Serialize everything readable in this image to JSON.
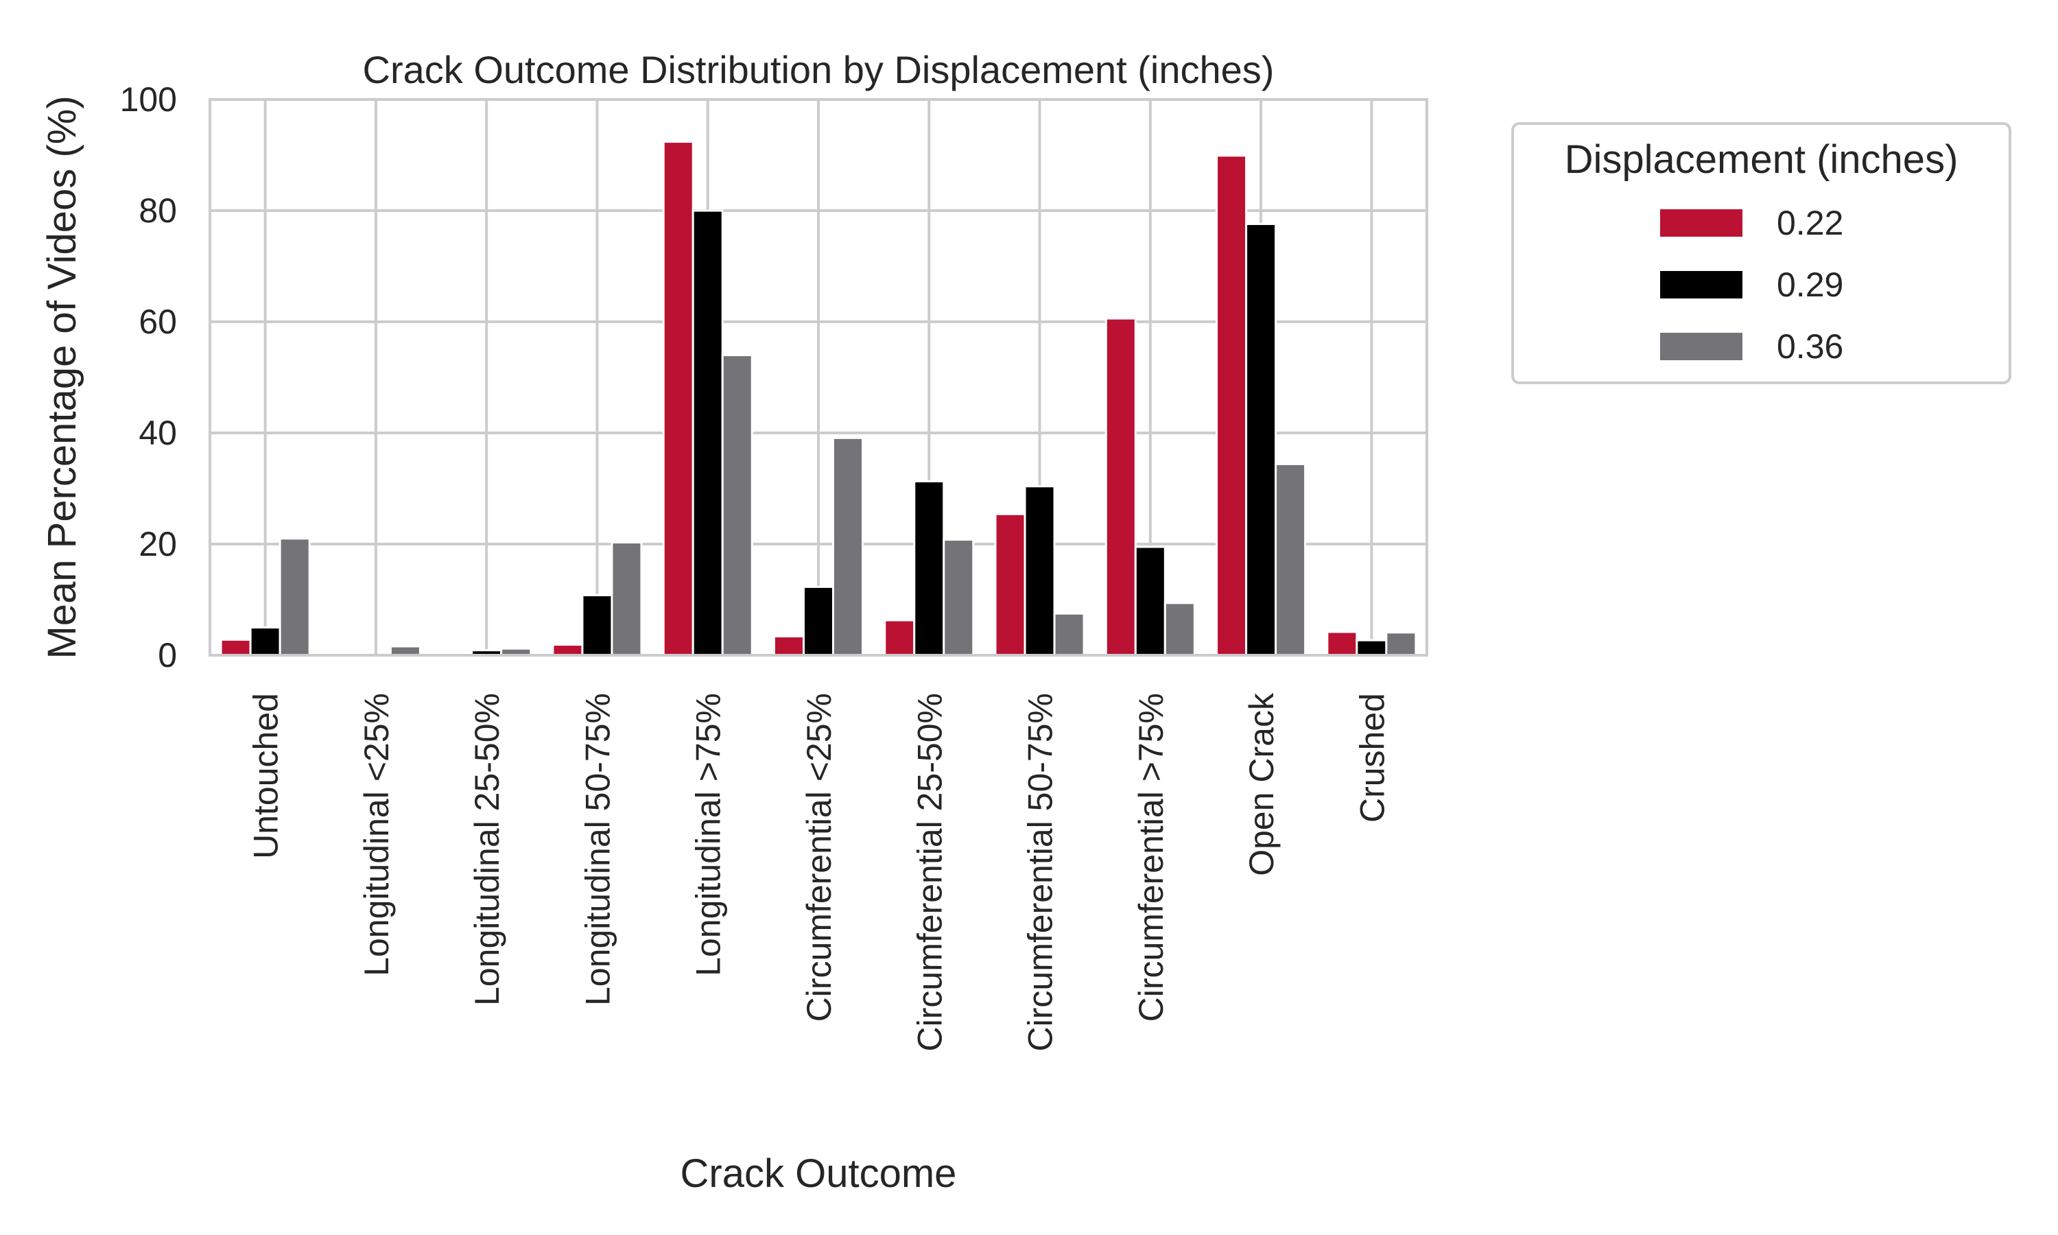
{
  "chart_data": {
    "type": "bar",
    "title": "Crack Outcome Distribution by Displacement (inches)",
    "xlabel": "Crack Outcome",
    "ylabel": "Mean Percentage of Videos (%)",
    "ylim": [
      0,
      100
    ],
    "yticks": [
      "0",
      "20",
      "40",
      "60",
      "80",
      "100"
    ],
    "grid": true,
    "legend_position": "outside-right",
    "legend_title": "Displacement (inches)",
    "categories": [
      "Untouched",
      "Longitudinal <25%",
      "Longitudinal 25-50%",
      "Longitudinal 50-75%",
      "Longitudinal >75%",
      "Circumferential <25%",
      "Circumferential 25-50%",
      "Circumferential 50-75%",
      "Circumferential >75%",
      "Open Crack",
      "Crushed"
    ],
    "series": [
      {
        "name": "0.22",
        "color": "#bb1133",
        "values": [
          2.8,
          0,
          0,
          1.9,
          92.4,
          3.4,
          6.3,
          25.4,
          60.6,
          89.9,
          4.2
        ]
      },
      {
        "name": "0.29",
        "color": "#000000",
        "values": [
          5.0,
          0,
          0.9,
          10.8,
          80.0,
          12.3,
          31.3,
          30.4,
          19.5,
          77.6,
          2.7
        ]
      },
      {
        "name": "0.36",
        "color": "#737378",
        "values": [
          21.0,
          1.6,
          1.2,
          20.3,
          54.0,
          39.1,
          20.8,
          7.5,
          9.4,
          34.4,
          4.1
        ]
      }
    ]
  }
}
